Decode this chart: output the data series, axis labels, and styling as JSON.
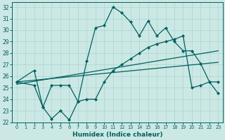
{
  "xlabel": "Humidex (Indice chaleur)",
  "bg_color": "#cce8e4",
  "grid_color": "#aad4d0",
  "line_color": "#006060",
  "xlim": [
    -0.5,
    23.5
  ],
  "ylim": [
    22,
    32.4
  ],
  "yticks": [
    22,
    23,
    24,
    25,
    26,
    27,
    28,
    29,
    30,
    31,
    32
  ],
  "xticks": [
    0,
    1,
    2,
    3,
    4,
    5,
    6,
    7,
    8,
    9,
    10,
    11,
    12,
    13,
    14,
    15,
    16,
    17,
    18,
    19,
    20,
    21,
    22,
    23
  ],
  "line1_x": [
    0,
    2,
    3,
    4,
    5,
    6,
    7,
    8,
    9,
    10,
    11,
    12,
    13,
    14,
    15,
    16,
    17,
    18,
    19,
    20,
    21,
    22,
    23
  ],
  "line1_y": [
    25.5,
    26.5,
    23.3,
    22.3,
    23.0,
    22.2,
    23.8,
    27.3,
    30.2,
    30.4,
    32.0,
    31.5,
    30.7,
    29.5,
    30.8,
    29.5,
    30.2,
    29.0,
    28.2,
    28.2,
    27.1,
    25.5,
    24.5
  ],
  "line2_x": [
    0,
    2,
    3,
    4,
    5,
    6,
    7,
    8,
    9,
    10,
    11,
    12,
    13,
    14,
    15,
    16,
    17,
    18,
    19,
    20,
    21,
    22,
    23
  ],
  "line2_y": [
    25.5,
    25.2,
    23.3,
    25.2,
    25.2,
    25.2,
    23.8,
    24.0,
    24.0,
    25.5,
    26.5,
    27.0,
    27.5,
    28.0,
    28.5,
    28.8,
    29.0,
    29.2,
    29.5,
    25.0,
    25.2,
    25.5,
    25.5
  ],
  "line3_x": [
    0,
    23
  ],
  "line3_y": [
    25.5,
    27.2
  ],
  "line4_x": [
    0,
    23
  ],
  "line4_y": [
    25.3,
    28.2
  ]
}
